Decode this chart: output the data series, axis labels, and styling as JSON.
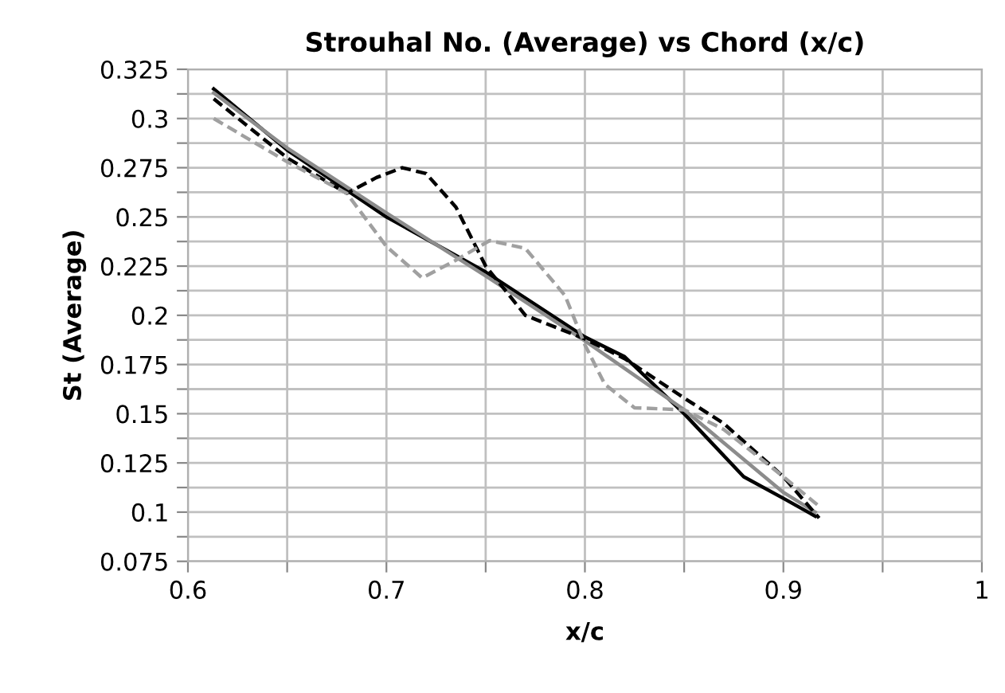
{
  "chart_data": {
    "type": "line",
    "title": "Strouhal No. (Average) vs Chord (x/c)",
    "xlabel": "x/c",
    "ylabel": "St (Average)",
    "xlim": [
      0.6,
      1
    ],
    "xticks": [
      0.6,
      {
        "value": 0.65,
        "label": null
      },
      0.7,
      {
        "value": 0.75,
        "label": null
      },
      0.8,
      {
        "value": 0.85,
        "label": null
      },
      0.9,
      {
        "value": 0.95,
        "label": null
      },
      1
    ],
    "ylim": [
      0.075,
      0.325
    ],
    "yticks": [
      0.075,
      {
        "value": 0.0875,
        "label": null
      },
      0.1,
      {
        "value": 0.1125,
        "label": null
      },
      0.125,
      {
        "value": 0.1375,
        "label": null
      },
      0.15,
      {
        "value": 0.1625,
        "label": null
      },
      0.175,
      {
        "value": 0.1875,
        "label": null
      },
      0.2,
      {
        "value": 0.2125,
        "label": null
      },
      0.225,
      {
        "value": 0.2375,
        "label": null
      },
      0.25,
      {
        "value": 0.2625,
        "label": null
      },
      0.275,
      {
        "value": 0.2875,
        "label": null
      },
      0.3,
      {
        "value": 0.3125,
        "label": null
      },
      0.325
    ],
    "grid": true,
    "marker": "none",
    "series": [
      {
        "color": "#000000",
        "line_style": "solid",
        "x": [
          0.613,
          0.65,
          0.7,
          0.75,
          0.8,
          0.82,
          0.85,
          0.88,
          0.9,
          0.916
        ],
        "values": [
          0.315,
          0.284,
          0.25,
          0.222,
          0.189,
          0.179,
          0.15,
          0.118,
          0.107,
          0.098
        ]
      },
      {
        "color": "#8c8c8c",
        "line_style": "solid",
        "x": [
          0.613,
          0.65,
          0.7,
          0.75,
          0.8,
          0.85,
          0.9,
          0.916
        ],
        "values": [
          0.313,
          0.285,
          0.252,
          0.22,
          0.187,
          0.152,
          0.11,
          0.1
        ]
      },
      {
        "color": "#000000",
        "line_style": "dashed",
        "x": [
          0.613,
          0.65,
          0.68,
          0.695,
          0.708,
          0.72,
          0.735,
          0.75,
          0.77,
          0.8,
          0.82,
          0.85,
          0.87,
          0.9,
          0.918
        ],
        "values": [
          0.31,
          0.28,
          0.262,
          0.27,
          0.275,
          0.272,
          0.255,
          0.225,
          0.2,
          0.188,
          0.178,
          0.158,
          0.145,
          0.118,
          0.097
        ]
      },
      {
        "color": "#a0a0a0",
        "line_style": "dashed",
        "x": [
          0.613,
          0.65,
          0.68,
          0.7,
          0.718,
          0.735,
          0.752,
          0.77,
          0.79,
          0.8,
          0.81,
          0.825,
          0.85,
          0.87,
          0.9,
          0.918
        ],
        "values": [
          0.3,
          0.278,
          0.262,
          0.235,
          0.219,
          0.228,
          0.238,
          0.234,
          0.21,
          0.185,
          0.165,
          0.153,
          0.152,
          0.142,
          0.118,
          0.103
        ]
      }
    ]
  }
}
